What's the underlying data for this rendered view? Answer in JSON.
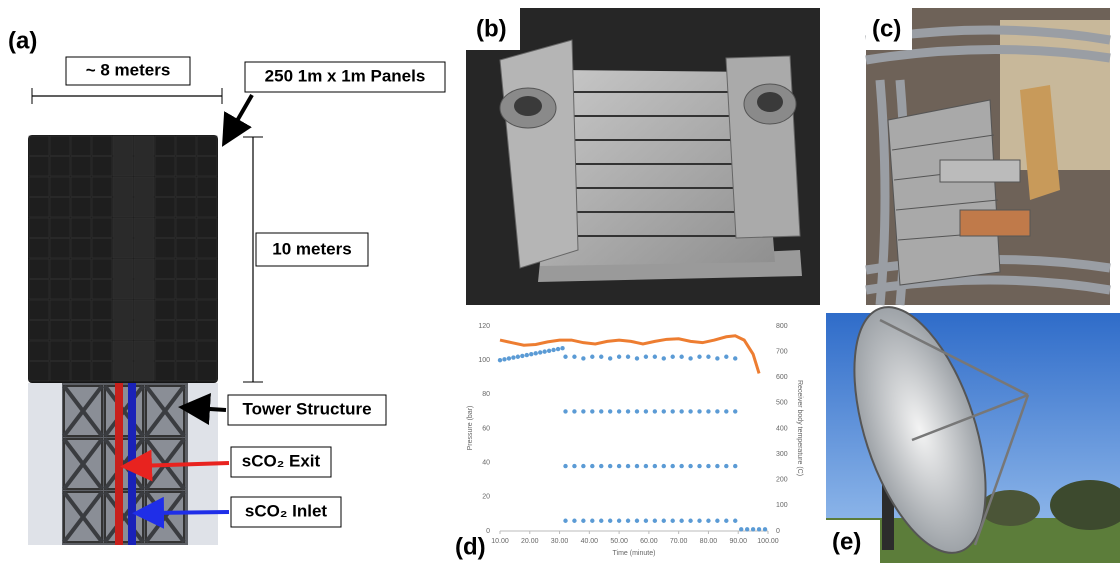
{
  "panels": {
    "a": {
      "label": "(a)",
      "width_label": "~ 8 meters",
      "panels_label": "250 1m x 1m Panels",
      "height_label": "10 meters",
      "tower_label": "Tower Structure",
      "exit_label": "sCO₂ Exit",
      "inlet_label": "sCO₂ Inlet"
    },
    "b": {
      "label": "(b)"
    },
    "c": {
      "label": "(c)"
    },
    "d": {
      "label": "(d)"
    },
    "e": {
      "label": "(e)"
    }
  },
  "chart_data": {
    "type": "combo",
    "xlabel": "Time (minute)",
    "ylabel": "Pressure (bar)",
    "y2label": "Receiver body temperature (C)",
    "xlim": [
      10,
      100
    ],
    "xticks": [
      {
        "value": 10,
        "label": "10.00"
      },
      {
        "value": 20,
        "label": "20.00"
      },
      {
        "value": 30,
        "label": "30.00"
      },
      {
        "value": 40,
        "label": "40.00"
      },
      {
        "value": 50,
        "label": "50.00"
      },
      {
        "value": 60,
        "label": "60.00"
      },
      {
        "value": 70,
        "label": "70.00"
      },
      {
        "value": 80,
        "label": "80.00"
      },
      {
        "value": 90,
        "label": "90.00"
      },
      {
        "value": 100,
        "label": "100.00"
      }
    ],
    "ylim": [
      0,
      120
    ],
    "yticks": [
      0,
      20,
      40,
      60,
      80,
      100,
      120
    ],
    "y2lim": [
      0,
      800
    ],
    "y2ticks": [
      0,
      100,
      200,
      300,
      400,
      500,
      600,
      700,
      800
    ],
    "grid": false,
    "series": [
      {
        "type": "line",
        "axis": "y2",
        "color": "#ed7d31",
        "x": [
          10,
          14,
          18,
          22,
          26,
          30,
          34,
          38,
          42,
          46,
          50,
          54,
          58,
          62,
          66,
          70,
          74,
          78,
          82,
          86,
          89,
          92,
          95,
          97
        ],
        "values": [
          745,
          735,
          725,
          728,
          738,
          745,
          745,
          735,
          730,
          740,
          745,
          740,
          730,
          740,
          748,
          750,
          740,
          735,
          745,
          758,
          762,
          745,
          690,
          615
        ]
      },
      {
        "type": "scatter",
        "color": "#5b9bd5",
        "x": [
          10,
          11.5,
          13,
          14.5,
          16,
          17.5,
          19,
          20.5,
          22,
          23.5,
          25,
          26.5,
          28,
          29.5,
          31,
          32,
          32,
          32,
          32,
          35,
          35,
          35,
          35,
          38,
          38,
          38,
          38,
          41,
          41,
          41,
          41,
          44,
          44,
          44,
          44,
          47,
          47,
          47,
          47,
          50,
          50,
          50,
          50,
          53,
          53,
          53,
          53,
          56,
          56,
          56,
          56,
          59,
          59,
          59,
          59,
          62,
          62,
          62,
          62,
          65,
          65,
          65,
          65,
          68,
          68,
          68,
          68,
          71,
          71,
          71,
          71,
          74,
          74,
          74,
          74,
          77,
          77,
          77,
          77,
          80,
          80,
          80,
          80,
          83,
          83,
          83,
          83,
          86,
          86,
          86,
          86,
          89,
          89,
          89,
          89,
          91,
          93,
          95,
          97,
          99
        ],
        "values": [
          100,
          100.5,
          101,
          101.5,
          102,
          102.5,
          103,
          103.5,
          104,
          104.5,
          105,
          105.5,
          106,
          106.5,
          107,
          102,
          70,
          38,
          6,
          102,
          70,
          38,
          6,
          101,
          70,
          38,
          6,
          102,
          70,
          38,
          6,
          102,
          70,
          38,
          6,
          101,
          70,
          38,
          6,
          102,
          70,
          38,
          6,
          102,
          70,
          38,
          6,
          101,
          70,
          38,
          6,
          102,
          70,
          38,
          6,
          102,
          70,
          38,
          6,
          101,
          70,
          38,
          6,
          102,
          70,
          38,
          6,
          102,
          70,
          38,
          6,
          101,
          70,
          38,
          6,
          102,
          70,
          38,
          6,
          102,
          70,
          38,
          6,
          101,
          70,
          38,
          6,
          102,
          70,
          38,
          6,
          101,
          70,
          38,
          6,
          1,
          1,
          1,
          1,
          1
        ]
      }
    ]
  }
}
